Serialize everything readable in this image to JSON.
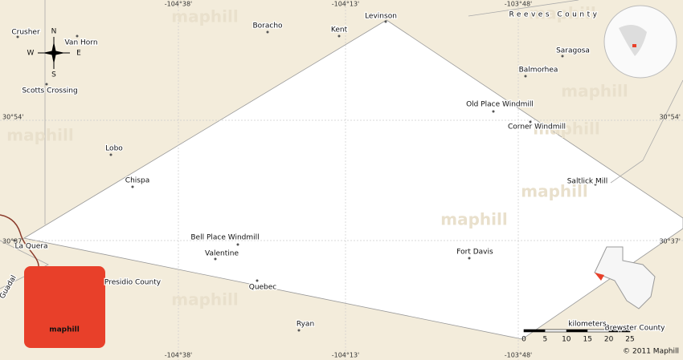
{
  "map": {
    "places": [
      "Crusher",
      "Van Horn",
      "Boracho",
      "Kent",
      "Levinson",
      "Reeves County",
      "Saragosa",
      "Balmorhea",
      "Old Place Windmill",
      "Corner Windmill",
      "Saltlick Mill",
      "Scotts Crossing",
      "Lobo",
      "Chispa",
      "Bell Place Windmill",
      "Valentine",
      "Fort Davis",
      "La Quera",
      "Presidio County",
      "Quebec",
      "Ryan",
      "Guadal",
      "Brewster County"
    ],
    "coords": {
      "top": [
        "-104°38'",
        "-104°13'",
        "-103°48'"
      ],
      "bottom": [
        "-104°38'",
        "-104°13'",
        "-103°48'"
      ],
      "left": [
        "30°54'",
        "30°37'"
      ],
      "right": [
        "30°54'",
        "30°37'"
      ]
    },
    "compass": [
      "N",
      "E",
      "S",
      "W"
    ],
    "scale": {
      "unit": "kilometers",
      "ticks": [
        0,
        5,
        10,
        15,
        20,
        25
      ]
    },
    "watermark": "maphill",
    "logo": "maphill",
    "copyright": "© 2011 Maphill"
  }
}
